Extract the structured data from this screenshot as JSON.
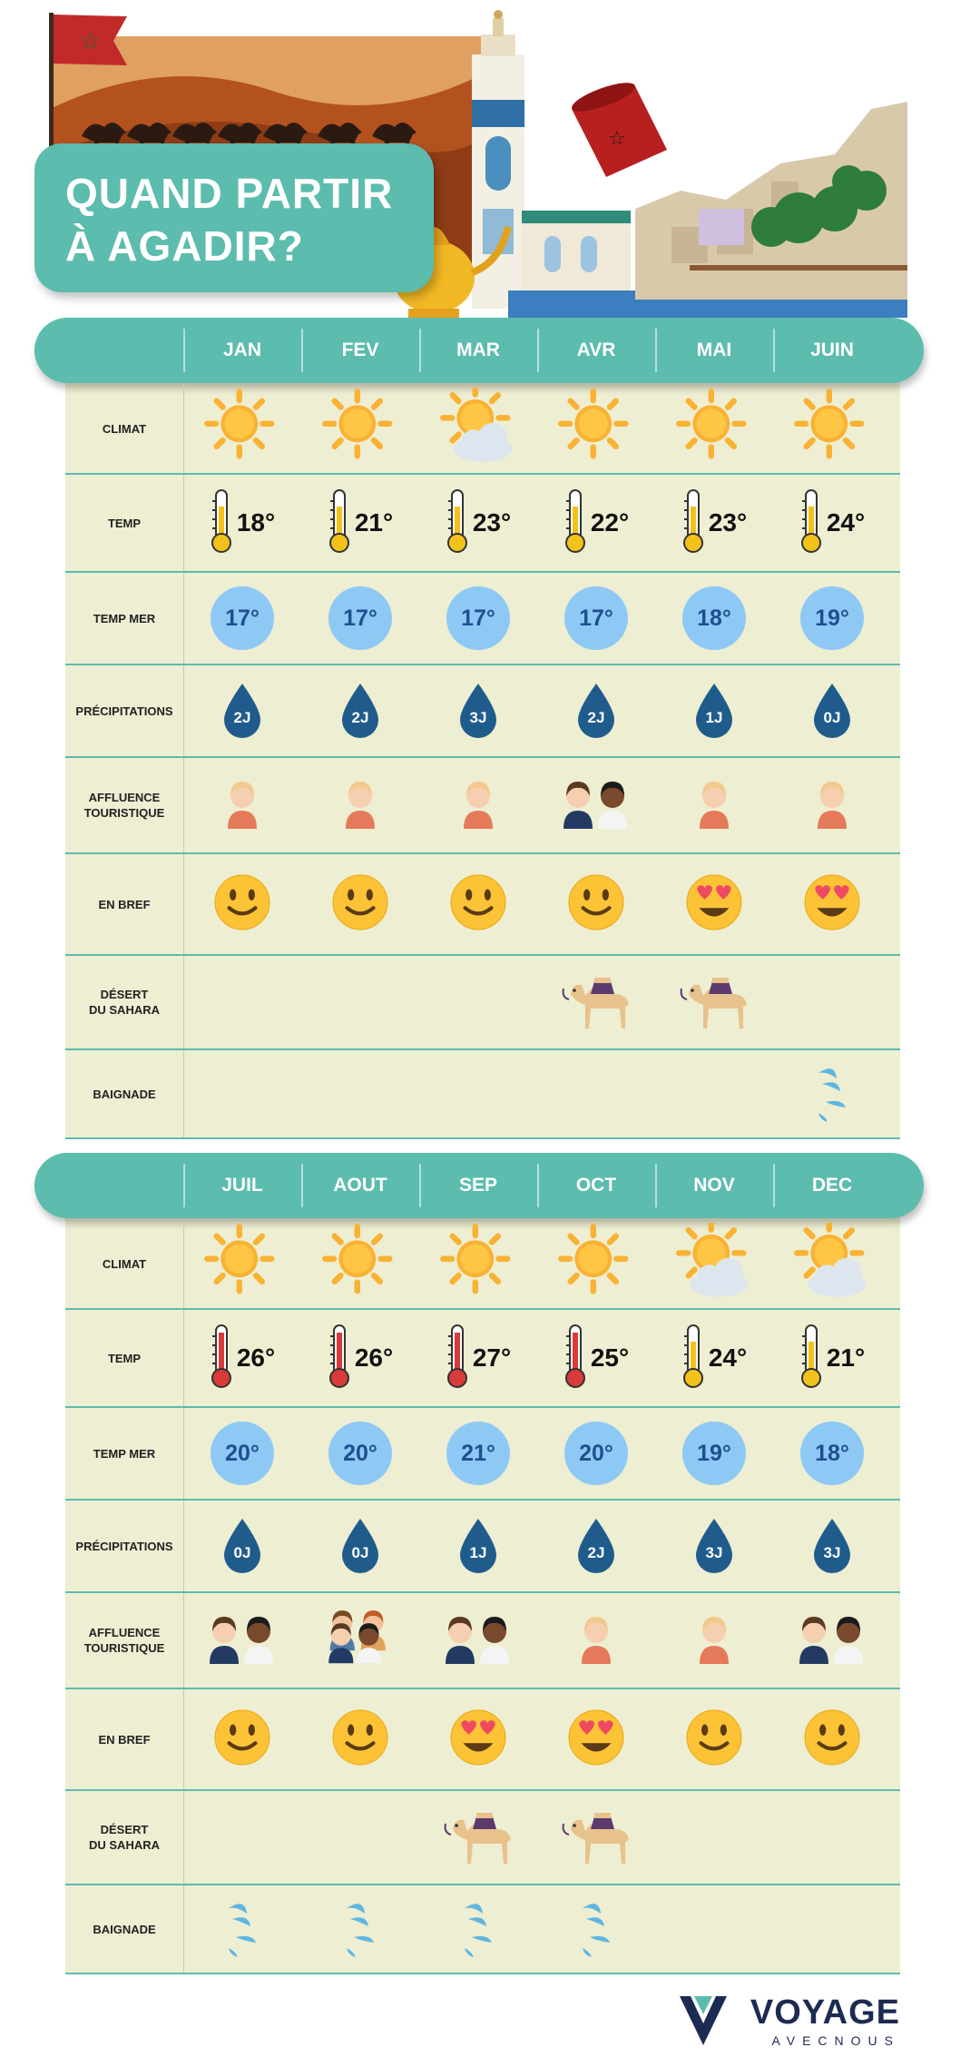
{
  "title": "QUAND PARTIR\nÀ AGADIR?",
  "colors": {
    "teal": "#5cbcad",
    "panel": "#eeeed2",
    "bubble": "#8ec9f5",
    "drop": "#1f5c8c",
    "sun": "#f9b233"
  },
  "row_labels": [
    "CLIMAT",
    "TEMP",
    "TEMP MER",
    "PRÉCIPITATIONS",
    "AFFLUENCE\nTOURISTIQUE",
    "EN BREF",
    "DÉSERT\nDU SAHARA",
    "BAIGNADE"
  ],
  "sections": [
    {
      "months": [
        "JAN",
        "FEV",
        "MAR",
        "AVR",
        "MAI",
        "JUIN"
      ],
      "climate": [
        "sun-icon",
        "sun-icon",
        "sun-cloud-icon",
        "sun-icon",
        "sun-icon",
        "sun-icon"
      ],
      "temp": [
        "18°",
        "21°",
        "23°",
        "22°",
        "23°",
        "24°"
      ],
      "temp_level": [
        "warm",
        "warm",
        "warm",
        "warm",
        "warm",
        "warm"
      ],
      "sea": [
        "17°",
        "17°",
        "17°",
        "17°",
        "18°",
        "19°"
      ],
      "rain": [
        "2J",
        "2J",
        "3J",
        "2J",
        "1J",
        "0J"
      ],
      "crowd": [
        1,
        1,
        1,
        2,
        1,
        1
      ],
      "mood": [
        "smile",
        "smile",
        "smile",
        "smile",
        "love",
        "love"
      ],
      "sahara": [
        false,
        false,
        false,
        true,
        true,
        false
      ],
      "swim": [
        false,
        false,
        false,
        false,
        false,
        true
      ]
    },
    {
      "months": [
        "JUIL",
        "AOUT",
        "SEP",
        "OCT",
        "NOV",
        "DEC"
      ],
      "climate": [
        "sun-icon",
        "sun-icon",
        "sun-icon",
        "sun-icon",
        "sun-cloud-icon",
        "sun-cloud-icon"
      ],
      "temp": [
        "26°",
        "26°",
        "27°",
        "25°",
        "24°",
        "21°"
      ],
      "temp_level": [
        "hot",
        "hot",
        "hot",
        "hot",
        "warm",
        "warm"
      ],
      "sea": [
        "20°",
        "20°",
        "21°",
        "20°",
        "19°",
        "18°"
      ],
      "rain": [
        "0J",
        "0J",
        "1J",
        "2J",
        "3J",
        "3J"
      ],
      "crowd": [
        2,
        4,
        2,
        1,
        1,
        2
      ],
      "mood": [
        "smile",
        "smile",
        "love",
        "love",
        "smile",
        "smile"
      ],
      "sahara": [
        false,
        false,
        true,
        true,
        false,
        false
      ],
      "swim": [
        true,
        true,
        true,
        true,
        false,
        false
      ]
    }
  ],
  "brand": {
    "name": "VOYAGE",
    "sub": "AVECNOUS"
  }
}
